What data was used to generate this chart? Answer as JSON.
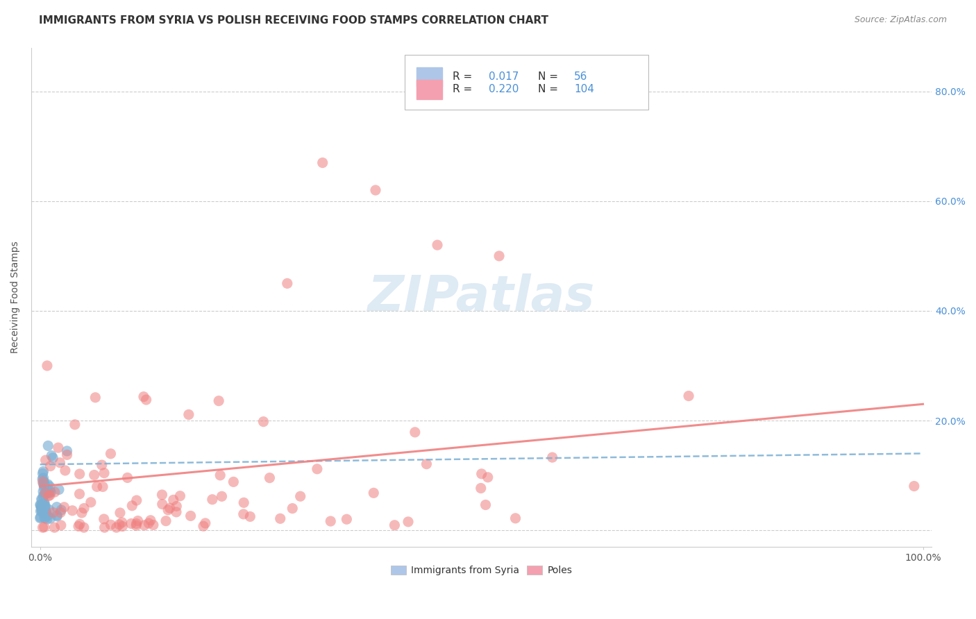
{
  "title": "IMMIGRANTS FROM SYRIA VS POLISH RECEIVING FOOD STAMPS CORRELATION CHART",
  "source": "Source: ZipAtlas.com",
  "ylabel": "Receiving Food Stamps",
  "watermark": "ZIPatlas",
  "syria_R": "0.017",
  "syria_N": "56",
  "poles_R": "0.220",
  "poles_N": "104",
  "syria_color": "#7bafd4",
  "syria_swatch_color": "#aec6e8",
  "poles_color": "#f08080",
  "poles_swatch_color": "#f4a0b0",
  "bg_color": "#ffffff",
  "grid_color": "#cccccc",
  "right_tick_color": "#4a90d9",
  "title_color": "#333333",
  "source_color": "#888888",
  "watermark_color": "#c8dced",
  "ytick_values": [
    0,
    20,
    40,
    60,
    80
  ],
  "title_fontsize": 11,
  "axis_fontsize": 10,
  "legend_fontsize": 11,
  "watermark_fontsize": 52,
  "xlim_min": -1,
  "xlim_max": 101,
  "ylim_min": -3,
  "ylim_max": 88
}
